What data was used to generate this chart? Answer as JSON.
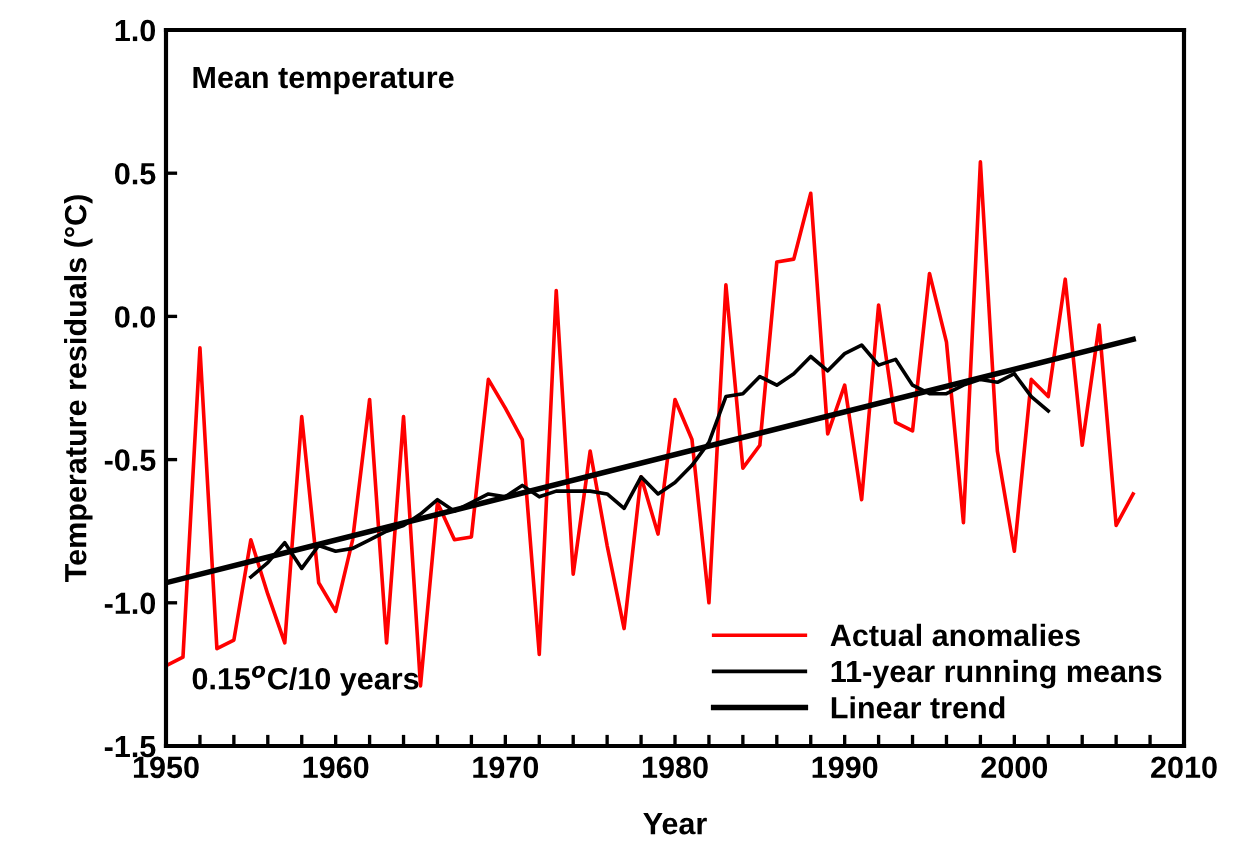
{
  "chart_data": {
    "type": "line",
    "xlabel": "Year",
    "ylabel": "Temperature residuals (°C)",
    "annotations": [
      "Mean temperature",
      "0.15$^{o}$C/10 years"
    ],
    "xlim": [
      1950,
      2010
    ],
    "ylim": [
      -1.5,
      1.0
    ],
    "xticks": [
      1950,
      {
        "value": 1952,
        "label": null
      },
      {
        "value": 1954,
        "label": null
      },
      {
        "value": 1956,
        "label": null
      },
      {
        "value": 1958,
        "label": null
      },
      1960,
      {
        "value": 1962,
        "label": null
      },
      {
        "value": 1964,
        "label": null
      },
      {
        "value": 1966,
        "label": null
      },
      {
        "value": 1968,
        "label": null
      },
      1970,
      {
        "value": 1972,
        "label": null
      },
      {
        "value": 1974,
        "label": null
      },
      {
        "value": 1976,
        "label": null
      },
      {
        "value": 1978,
        "label": null
      },
      1980,
      {
        "value": 1982,
        "label": null
      },
      {
        "value": 1984,
        "label": null
      },
      {
        "value": 1986,
        "label": null
      },
      {
        "value": 1988,
        "label": null
      },
      1990,
      {
        "value": 1992,
        "label": null
      },
      {
        "value": 1994,
        "label": null
      },
      {
        "value": 1996,
        "label": null
      },
      {
        "value": 1998,
        "label": null
      },
      2000,
      {
        "value": 2002,
        "label": null
      },
      {
        "value": 2004,
        "label": null
      },
      {
        "value": 2006,
        "label": null
      },
      {
        "value": 2008,
        "label": null
      },
      2010
    ],
    "yticks": [
      {
        "value": -1.5,
        "label": "-1.5"
      },
      {
        "value": -1.0,
        "label": "-1.0"
      },
      {
        "value": -0.5,
        "label": "-0.5"
      },
      {
        "value": 0.0,
        "label": "0.0"
      },
      {
        "value": 0.5,
        "label": "0.5"
      },
      {
        "value": 1.0,
        "label": "1.0"
      }
    ],
    "grid": false,
    "legend": "bottom right",
    "marker": "none",
    "line_style": "solid",
    "series": [
      {
        "name": "Actual anomalies",
        "color": "#ff0000",
        "x": [
          1950,
          1951,
          1952,
          1953,
          1954,
          1955,
          1956,
          1957,
          1958,
          1959,
          1960,
          1961,
          1962,
          1963,
          1964,
          1965,
          1966,
          1967,
          1968,
          1969,
          1970,
          1971,
          1972,
          1973,
          1974,
          1975,
          1976,
          1977,
          1978,
          1979,
          1980,
          1981,
          1982,
          1983,
          1984,
          1985,
          1986,
          1987,
          1988,
          1989,
          1990,
          1991,
          1992,
          1993,
          1994,
          1995,
          1996,
          1997,
          1998,
          1999,
          2000,
          2001,
          2002,
          2003,
          2004,
          2005,
          2006,
          2007
        ],
        "values": [
          -1.22,
          -1.19,
          -0.11,
          -1.16,
          -1.13,
          -0.78,
          -0.97,
          -1.14,
          -0.35,
          -0.93,
          -1.03,
          -0.78,
          -0.29,
          -1.14,
          -0.35,
          -1.29,
          -0.65,
          -0.78,
          -0.77,
          -0.22,
          -0.32,
          -0.43,
          -1.18,
          0.09,
          -0.9,
          -0.47,
          -0.8,
          -1.09,
          -0.56,
          -0.76,
          -0.29,
          -0.43,
          -1.0,
          0.11,
          -0.53,
          -0.45,
          0.19,
          0.2,
          0.43,
          -0.41,
          -0.24,
          -0.64,
          0.04,
          -0.37,
          -0.4,
          0.15,
          -0.09,
          -0.72,
          0.54,
          -0.47,
          -0.82,
          -0.22,
          -0.28,
          0.13,
          -0.45,
          -0.03,
          -0.73,
          -0.62
        ]
      },
      {
        "name": "11-year running means",
        "color": "#000000",
        "x": [
          1955,
          1956,
          1957,
          1958,
          1959,
          1960,
          1961,
          1962,
          1963,
          1964,
          1965,
          1966,
          1967,
          1968,
          1969,
          1970,
          1971,
          1972,
          1973,
          1974,
          1975,
          1976,
          1977,
          1978,
          1979,
          1980,
          1981,
          1982,
          1983,
          1984,
          1985,
          1986,
          1987,
          1988,
          1989,
          1990,
          1991,
          1992,
          1993,
          1994,
          1995,
          1996,
          1997,
          1998,
          1999,
          2000,
          2001,
          2002
        ],
        "values": [
          -0.91,
          -0.86,
          -0.79,
          -0.88,
          -0.8,
          -0.82,
          -0.81,
          -0.78,
          -0.75,
          -0.73,
          -0.69,
          -0.64,
          -0.68,
          -0.65,
          -0.62,
          -0.63,
          -0.59,
          -0.63,
          -0.61,
          -0.61,
          -0.61,
          -0.62,
          -0.67,
          -0.56,
          -0.62,
          -0.58,
          -0.52,
          -0.44,
          -0.28,
          -0.27,
          -0.21,
          -0.24,
          -0.2,
          -0.14,
          -0.19,
          -0.13,
          -0.1,
          -0.17,
          -0.15,
          -0.24,
          -0.27,
          -0.27,
          -0.24,
          -0.22,
          -0.23,
          -0.2,
          -0.28,
          -0.33
        ]
      },
      {
        "name": "Linear trend",
        "color": "#000000",
        "x": [
          1950,
          2007
        ],
        "values": [
          -0.93,
          -0.08
        ]
      }
    ]
  }
}
